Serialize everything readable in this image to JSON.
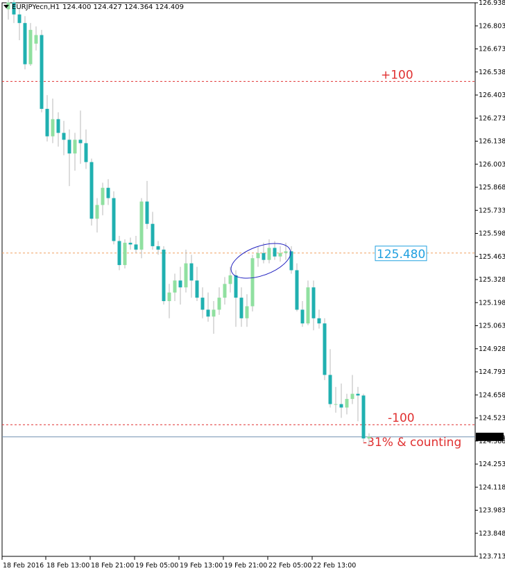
{
  "header": {
    "symbol": "EURJPYecn,H1",
    "ohlc": "124.400 124.427 124.364 124.409"
  },
  "colors": {
    "bull": "#90e0a0",
    "bear": "#20b0b0",
    "wick": "#b8b8b8",
    "red_level": "#e03030",
    "orange_level": "#f0a060",
    "current_line": "#7090b0",
    "ellipse": "#2020c0",
    "price_box": "#20a0e0"
  },
  "chart_data": {
    "type": "candlestick",
    "title": "EURJPYecn,H1",
    "y_ticks": [
      "126.938",
      "126.803",
      "126.673",
      "126.538",
      "126.403",
      "126.273",
      "126.138",
      "126.003",
      "125.868",
      "125.733",
      "125.598",
      "125.463",
      "125.328",
      "125.198",
      "125.063",
      "124.928",
      "124.793",
      "124.658",
      "124.523",
      "124.388",
      "124.253",
      "124.118",
      "123.983",
      "123.848",
      "123.713"
    ],
    "x_ticks": [
      "18 Feb 2016",
      "18 Feb 13:00",
      "18 Feb 21:00",
      "19 Feb 05:00",
      "19 Feb 13:00",
      "19 Feb 21:00",
      "22 Feb 05:00",
      "22 Feb 13:00"
    ],
    "ylim": [
      123.713,
      126.938
    ],
    "grid": false,
    "current_price": "124.409",
    "levels": [
      {
        "price": 126.48,
        "label": "+100",
        "color": "red"
      },
      {
        "price": 125.48,
        "label": "125.480",
        "color": "orange",
        "boxed": true
      },
      {
        "price": 124.48,
        "label": "-100",
        "color": "red"
      }
    ],
    "annotation": "-31% & counting",
    "candles": [
      {
        "o": 126.9,
        "h": 126.96,
        "l": 126.84,
        "c": 126.94
      },
      {
        "o": 126.94,
        "h": 126.96,
        "l": 126.82,
        "c": 126.87
      },
      {
        "o": 126.87,
        "h": 126.9,
        "l": 126.72,
        "c": 126.82
      },
      {
        "o": 126.82,
        "h": 126.86,
        "l": 126.55,
        "c": 126.58
      },
      {
        "o": 126.58,
        "h": 126.82,
        "l": 126.57,
        "c": 126.78
      },
      {
        "o": 126.7,
        "h": 126.8,
        "l": 126.66,
        "c": 126.75
      },
      {
        "o": 126.75,
        "h": 126.78,
        "l": 126.3,
        "c": 126.32
      },
      {
        "o": 126.32,
        "h": 126.4,
        "l": 126.13,
        "c": 126.16
      },
      {
        "o": 126.16,
        "h": 126.38,
        "l": 126.12,
        "c": 126.26
      },
      {
        "o": 126.26,
        "h": 126.3,
        "l": 126.1,
        "c": 126.18
      },
      {
        "o": 126.18,
        "h": 126.25,
        "l": 126.05,
        "c": 126.14
      },
      {
        "o": 126.14,
        "h": 126.2,
        "l": 125.87,
        "c": 126.06
      },
      {
        "o": 126.06,
        "h": 126.18,
        "l": 125.96,
        "c": 126.14
      },
      {
        "o": 126.14,
        "h": 126.31,
        "l": 126.0,
        "c": 126.12
      },
      {
        "o": 126.12,
        "h": 126.2,
        "l": 125.97,
        "c": 126.01
      },
      {
        "o": 126.01,
        "h": 126.03,
        "l": 125.64,
        "c": 125.68
      },
      {
        "o": 125.68,
        "h": 125.8,
        "l": 125.6,
        "c": 125.76
      },
      {
        "o": 125.76,
        "h": 125.89,
        "l": 125.7,
        "c": 125.86
      },
      {
        "o": 125.86,
        "h": 125.91,
        "l": 125.76,
        "c": 125.8
      },
      {
        "o": 125.8,
        "h": 125.84,
        "l": 125.53,
        "c": 125.55
      },
      {
        "o": 125.55,
        "h": 125.58,
        "l": 125.38,
        "c": 125.41
      },
      {
        "o": 125.41,
        "h": 125.56,
        "l": 125.39,
        "c": 125.54
      },
      {
        "o": 125.54,
        "h": 125.57,
        "l": 125.5,
        "c": 125.53
      },
      {
        "o": 125.53,
        "h": 125.58,
        "l": 125.48,
        "c": 125.5
      },
      {
        "o": 125.5,
        "h": 125.8,
        "l": 125.45,
        "c": 125.78
      },
      {
        "o": 125.78,
        "h": 125.9,
        "l": 125.62,
        "c": 125.65
      },
      {
        "o": 125.65,
        "h": 125.72,
        "l": 125.5,
        "c": 125.52
      },
      {
        "o": 125.52,
        "h": 125.55,
        "l": 125.47,
        "c": 125.5
      },
      {
        "o": 125.5,
        "h": 125.52,
        "l": 125.18,
        "c": 125.2
      },
      {
        "o": 125.2,
        "h": 125.3,
        "l": 125.1,
        "c": 125.25
      },
      {
        "o": 125.25,
        "h": 125.36,
        "l": 125.2,
        "c": 125.32
      },
      {
        "o": 125.32,
        "h": 125.4,
        "l": 125.18,
        "c": 125.28
      },
      {
        "o": 125.28,
        "h": 125.5,
        "l": 125.25,
        "c": 125.42
      },
      {
        "o": 125.42,
        "h": 125.47,
        "l": 125.22,
        "c": 125.32
      },
      {
        "o": 125.32,
        "h": 125.4,
        "l": 125.2,
        "c": 125.22
      },
      {
        "o": 125.22,
        "h": 125.28,
        "l": 125.1,
        "c": 125.15
      },
      {
        "o": 125.15,
        "h": 125.25,
        "l": 125.08,
        "c": 125.11
      },
      {
        "o": 125.11,
        "h": 125.2,
        "l": 125.01,
        "c": 125.15
      },
      {
        "o": 125.15,
        "h": 125.28,
        "l": 125.12,
        "c": 125.22
      },
      {
        "o": 125.22,
        "h": 125.34,
        "l": 125.18,
        "c": 125.3
      },
      {
        "o": 125.3,
        "h": 125.4,
        "l": 125.25,
        "c": 125.35
      },
      {
        "o": 125.35,
        "h": 125.38,
        "l": 125.05,
        "c": 125.22
      },
      {
        "o": 125.22,
        "h": 125.28,
        "l": 125.05,
        "c": 125.1
      },
      {
        "o": 125.1,
        "h": 125.24,
        "l": 125.05,
        "c": 125.17
      },
      {
        "o": 125.17,
        "h": 125.47,
        "l": 125.14,
        "c": 125.45
      },
      {
        "o": 125.45,
        "h": 125.52,
        "l": 125.4,
        "c": 125.48
      },
      {
        "o": 125.48,
        "h": 125.54,
        "l": 125.42,
        "c": 125.44
      },
      {
        "o": 125.44,
        "h": 125.56,
        "l": 125.42,
        "c": 125.51
      },
      {
        "o": 125.51,
        "h": 125.55,
        "l": 125.44,
        "c": 125.46
      },
      {
        "o": 125.46,
        "h": 125.52,
        "l": 125.43,
        "c": 125.48
      },
      {
        "o": 125.48,
        "h": 125.54,
        "l": 125.44,
        "c": 125.49
      },
      {
        "o": 125.49,
        "h": 125.52,
        "l": 125.36,
        "c": 125.38
      },
      {
        "o": 125.38,
        "h": 125.42,
        "l": 125.14,
        "c": 125.15
      },
      {
        "o": 125.15,
        "h": 125.2,
        "l": 125.05,
        "c": 125.07
      },
      {
        "o": 125.07,
        "h": 125.32,
        "l": 125.06,
        "c": 125.28
      },
      {
        "o": 125.28,
        "h": 125.32,
        "l": 125.03,
        "c": 125.1
      },
      {
        "o": 125.1,
        "h": 125.15,
        "l": 125.04,
        "c": 125.07
      },
      {
        "o": 125.07,
        "h": 125.1,
        "l": 124.74,
        "c": 124.77
      },
      {
        "o": 124.77,
        "h": 124.92,
        "l": 124.58,
        "c": 124.6
      },
      {
        "o": 124.6,
        "h": 124.7,
        "l": 124.55,
        "c": 124.6
      },
      {
        "o": 124.6,
        "h": 124.72,
        "l": 124.52,
        "c": 124.58
      },
      {
        "o": 124.58,
        "h": 124.66,
        "l": 124.54,
        "c": 124.63
      },
      {
        "o": 124.63,
        "h": 124.77,
        "l": 124.6,
        "c": 124.66
      },
      {
        "o": 124.66,
        "h": 124.7,
        "l": 124.5,
        "c": 124.65
      },
      {
        "o": 124.65,
        "h": 124.66,
        "l": 124.38,
        "c": 124.4
      },
      {
        "o": 124.4,
        "h": 124.43,
        "l": 124.36,
        "c": 124.41
      }
    ]
  }
}
